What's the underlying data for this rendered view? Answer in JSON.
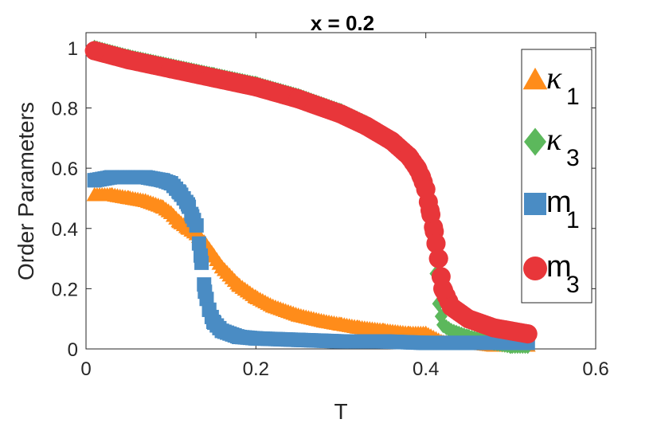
{
  "chart_data": {
    "type": "scatter",
    "title": "x = 0.2",
    "xlabel": "T",
    "ylabel": "Order Parameters",
    "xlim": [
      0,
      0.6
    ],
    "ylim": [
      0,
      1.05
    ],
    "xticks": [
      "0",
      "0.2",
      "0.4",
      "0.6"
    ],
    "yticks": [
      "0",
      "0.2",
      "0.4",
      "0.6",
      "0.8",
      "1"
    ],
    "grid": false,
    "legend_position": "right",
    "series": [
      {
        "name": "κ1",
        "legend_symbol": "κ",
        "legend_sub": "1",
        "marker": "triangle",
        "color": "#FF8C1A",
        "x": [
          0.01,
          0.03,
          0.05,
          0.07,
          0.09,
          0.1,
          0.11,
          0.12,
          0.13,
          0.14,
          0.15,
          0.16,
          0.18,
          0.2,
          0.22,
          0.25,
          0.28,
          0.3,
          0.32,
          0.35,
          0.38,
          0.4,
          0.42,
          0.45,
          0.48,
          0.5,
          0.52
        ],
        "y": [
          0.51,
          0.51,
          0.5,
          0.49,
          0.47,
          0.45,
          0.42,
          0.4,
          0.38,
          0.35,
          0.31,
          0.27,
          0.21,
          0.17,
          0.14,
          0.11,
          0.09,
          0.08,
          0.07,
          0.06,
          0.05,
          0.05,
          0.02,
          0.02,
          0.01,
          0.01,
          0.01
        ]
      },
      {
        "name": "κ3",
        "legend_symbol": "κ",
        "legend_sub": "3",
        "marker": "diamond",
        "color": "#5CB85C",
        "x": [
          0.01,
          0.05,
          0.1,
          0.15,
          0.2,
          0.25,
          0.3,
          0.33,
          0.36,
          0.38,
          0.39,
          0.4,
          0.405,
          0.41,
          0.412,
          0.415,
          0.42,
          0.43,
          0.45,
          0.48,
          0.5,
          0.52
        ],
        "y": [
          1.0,
          0.97,
          0.94,
          0.91,
          0.88,
          0.84,
          0.79,
          0.75,
          0.69,
          0.64,
          0.61,
          0.53,
          0.45,
          0.35,
          0.25,
          0.15,
          0.08,
          0.06,
          0.04,
          0.02,
          0.01,
          0.01
        ]
      },
      {
        "name": "m1",
        "legend_symbol": "m",
        "legend_sub": "1",
        "marker": "square",
        "color": "#4A8CC4",
        "x": [
          0.01,
          0.03,
          0.05,
          0.07,
          0.09,
          0.1,
          0.11,
          0.12,
          0.125,
          0.13,
          0.135,
          0.14,
          0.145,
          0.15,
          0.16,
          0.18,
          0.2,
          0.25,
          0.3,
          0.35,
          0.4,
          0.45,
          0.5,
          0.52
        ],
        "y": [
          0.56,
          0.57,
          0.57,
          0.57,
          0.56,
          0.55,
          0.52,
          0.48,
          0.44,
          0.41,
          0.31,
          0.19,
          0.13,
          0.09,
          0.06,
          0.04,
          0.035,
          0.03,
          0.025,
          0.025,
          0.02,
          0.02,
          0.02,
          0.02
        ]
      },
      {
        "name": "m3",
        "legend_symbol": "m",
        "legend_sub": "3",
        "marker": "circle",
        "color": "#E8363A",
        "x": [
          0.01,
          0.05,
          0.1,
          0.15,
          0.2,
          0.25,
          0.3,
          0.33,
          0.36,
          0.38,
          0.39,
          0.395,
          0.4,
          0.405,
          0.41,
          0.412,
          0.415,
          0.42,
          0.43,
          0.45,
          0.48,
          0.5,
          0.52
        ],
        "y": [
          0.99,
          0.96,
          0.93,
          0.9,
          0.87,
          0.83,
          0.78,
          0.74,
          0.69,
          0.64,
          0.6,
          0.57,
          0.53,
          0.46,
          0.39,
          0.35,
          0.3,
          0.2,
          0.14,
          0.1,
          0.07,
          0.06,
          0.05
        ]
      }
    ]
  }
}
